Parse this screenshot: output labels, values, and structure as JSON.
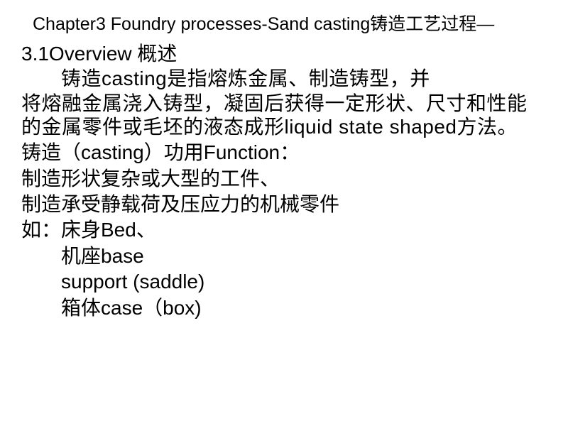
{
  "document": {
    "chapter_title": "Chapter3 Foundry processes-Sand casting铸造工艺过程—",
    "section_title": "3.1Overview 概述",
    "paragraph_line1": "铸造casting是指熔炼金属、制造铸型，并",
    "paragraph_line2": "将熔融金属浇入铸型，凝固后获得一定形状、尺寸和性能的金属零件或毛坯的液态成形liquid state shaped方法。",
    "function_label": "铸造（casting）功用Function：",
    "function_item1": "制造形状复杂或大型的工件、",
    "function_item2": "制造承受静载荷及压应力的机械零件",
    "examples_label": "如：床身Bed、",
    "example_base": "机座base",
    "example_support": "support (saddle)",
    "example_case": "箱体case（box)",
    "text_color": "#000000",
    "background_color": "#ffffff",
    "title_fontsize": 25,
    "body_fontsize": 28
  }
}
